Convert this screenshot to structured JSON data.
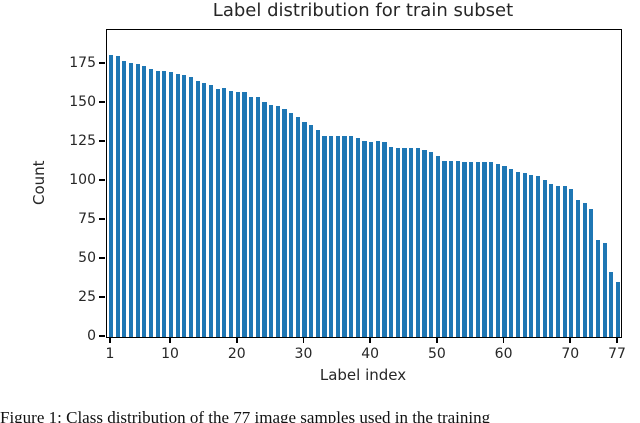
{
  "figure": {
    "title": "Label distribution for train subset",
    "xlabel": "Label index",
    "ylabel": "Count",
    "caption": "Figure 1: Class distribution of the 77 image samples used in the training"
  },
  "chart_data": {
    "type": "bar",
    "title": "Label distribution for train subset",
    "xlabel": "Label index",
    "ylabel": "Count",
    "bar_color": "#1f77b4",
    "grid": false,
    "legend": "none",
    "xlim": [
      0,
      78
    ],
    "ylim": [
      0,
      197
    ],
    "xticks": [
      1,
      10,
      20,
      30,
      40,
      50,
      60,
      70,
      77
    ],
    "yticks": [
      0,
      25,
      50,
      75,
      100,
      125,
      150,
      175
    ],
    "x": [
      1,
      2,
      3,
      4,
      5,
      6,
      7,
      8,
      9,
      10,
      11,
      12,
      13,
      14,
      15,
      16,
      17,
      18,
      19,
      20,
      21,
      22,
      23,
      24,
      25,
      26,
      27,
      28,
      29,
      30,
      31,
      32,
      33,
      34,
      35,
      36,
      37,
      38,
      39,
      40,
      41,
      42,
      43,
      44,
      45,
      46,
      47,
      48,
      49,
      50,
      51,
      52,
      53,
      54,
      55,
      56,
      57,
      58,
      59,
      60,
      61,
      62,
      63,
      64,
      65,
      66,
      67,
      68,
      69,
      70,
      71,
      72,
      73,
      74,
      75,
      76,
      77
    ],
    "values": [
      181,
      180,
      177,
      176,
      175,
      174,
      172,
      171,
      171,
      170,
      169,
      168,
      167,
      164,
      163,
      162,
      159,
      160,
      158,
      157,
      157,
      154,
      154,
      151,
      149,
      148,
      146,
      144,
      141,
      138,
      136,
      133,
      129,
      129,
      129,
      129,
      129,
      128,
      126,
      125,
      126,
      125,
      122,
      121,
      121,
      121,
      121,
      120,
      119,
      116,
      113,
      113,
      113,
      112,
      112,
      112,
      112,
      112,
      111,
      110,
      108,
      106,
      105,
      104,
      103,
      101,
      98,
      97,
      97,
      95,
      88,
      86,
      82,
      62,
      60,
      42,
      35
    ]
  }
}
